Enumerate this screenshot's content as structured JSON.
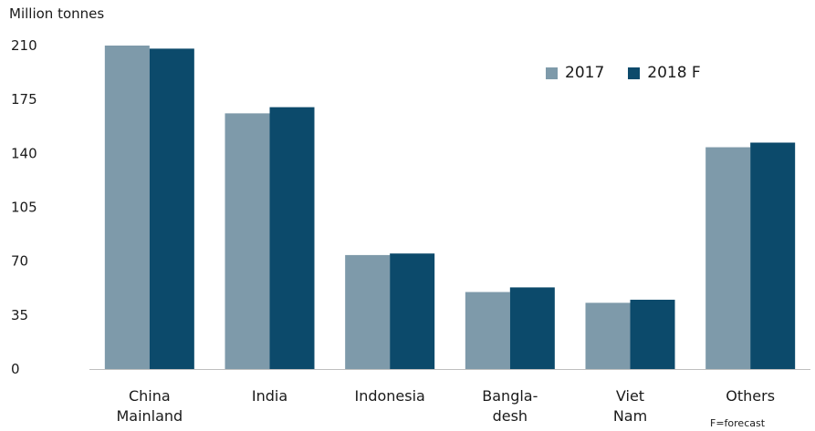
{
  "chart_data": {
    "type": "bar",
    "unit_label": "Million tonnes",
    "categories": [
      [
        "China",
        "Mainland"
      ],
      [
        "India"
      ],
      [
        "Indonesia"
      ],
      [
        "Bangla-",
        "desh"
      ],
      [
        "Viet",
        "Nam"
      ],
      [
        "Others"
      ]
    ],
    "series": [
      {
        "name": "2017",
        "color": "#7e9aaa",
        "values": [
          210,
          166,
          74,
          50,
          43,
          144
        ]
      },
      {
        "name": "2018 F",
        "color": "#0c4a6b",
        "values": [
          208,
          170,
          75,
          53,
          45,
          147
        ]
      }
    ],
    "yticks": [
      0,
      35,
      70,
      105,
      140,
      175,
      210
    ],
    "ylim": [
      0,
      210
    ],
    "grid": false,
    "legend_position": "top-right",
    "footnote": "F=forecast"
  }
}
